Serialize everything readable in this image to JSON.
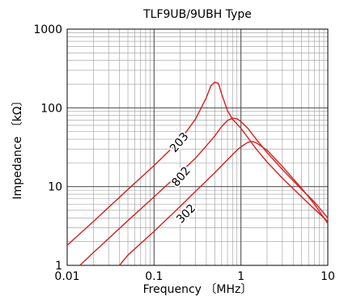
{
  "chart_data": {
    "type": "line",
    "title": "TLF9UB/9UBH Type",
    "xlabel": "Frequency 〔MHz〕",
    "ylabel": "Impedance 〔kΩ〕",
    "xscale": "log",
    "yscale": "log",
    "xlim": [
      0.01,
      10
    ],
    "ylim": [
      1,
      1000
    ],
    "grid": true,
    "x_ticks": [
      {
        "value": 0.01,
        "label": "0.01"
      },
      {
        "value": 0.1,
        "label": "0.1"
      },
      {
        "value": 1,
        "label": "1"
      },
      {
        "value": 10,
        "label": "10"
      }
    ],
    "y_ticks": [
      {
        "value": 1,
        "label": "1"
      },
      {
        "value": 10,
        "label": "10"
      },
      {
        "value": 100,
        "label": "100"
      },
      {
        "value": 1000,
        "label": "1000"
      }
    ],
    "line_color": "#d42020",
    "series": [
      {
        "name": "203",
        "label_at": [
          0.21,
          34
        ],
        "label_angle": -50,
        "points": [
          [
            0.01,
            1.8
          ],
          [
            0.02,
            3.6
          ],
          [
            0.05,
            9.2
          ],
          [
            0.1,
            18.5
          ],
          [
            0.2,
            39
          ],
          [
            0.3,
            72
          ],
          [
            0.4,
            135
          ],
          [
            0.45,
            190
          ],
          [
            0.5,
            212
          ],
          [
            0.55,
            205
          ],
          [
            0.6,
            150
          ],
          [
            0.7,
            92
          ],
          [
            0.8,
            72
          ],
          [
            1.0,
            55
          ],
          [
            1.2,
            42
          ],
          [
            1.5,
            30
          ],
          [
            2,
            20.5
          ],
          [
            3,
            12.8
          ],
          [
            5,
            7.4
          ],
          [
            7,
            5.2
          ],
          [
            10,
            3.6
          ]
        ]
      },
      {
        "name": "802",
        "label_at": [
          0.22,
          12.5
        ],
        "label_angle": -50,
        "points": [
          [
            0.014,
            1.0
          ],
          [
            0.02,
            1.45
          ],
          [
            0.05,
            3.7
          ],
          [
            0.1,
            7.4
          ],
          [
            0.2,
            15
          ],
          [
            0.3,
            23
          ],
          [
            0.4,
            33
          ],
          [
            0.5,
            44
          ],
          [
            0.6,
            58
          ],
          [
            0.7,
            69
          ],
          [
            0.8,
            74
          ],
          [
            0.9,
            73
          ],
          [
            1.0,
            67
          ],
          [
            1.2,
            55
          ],
          [
            1.5,
            40
          ],
          [
            2,
            27
          ],
          [
            3,
            16.5
          ],
          [
            5,
            9.2
          ],
          [
            7,
            6.4
          ],
          [
            10,
            4.0
          ]
        ]
      },
      {
        "name": "302",
        "label_at": [
          0.25,
          4.2
        ],
        "label_angle": -45,
        "points": [
          [
            0.04,
            1.0
          ],
          [
            0.05,
            1.35
          ],
          [
            0.1,
            2.7
          ],
          [
            0.2,
            5.6
          ],
          [
            0.3,
            8.7
          ],
          [
            0.5,
            15
          ],
          [
            0.7,
            22
          ],
          [
            0.9,
            29
          ],
          [
            1.0,
            32
          ],
          [
            1.2,
            36.5
          ],
          [
            1.35,
            37.5
          ],
          [
            1.5,
            36
          ],
          [
            2,
            29
          ],
          [
            3,
            18
          ],
          [
            5,
            9.5
          ],
          [
            7,
            6.0
          ],
          [
            10,
            3.4
          ]
        ]
      }
    ]
  }
}
